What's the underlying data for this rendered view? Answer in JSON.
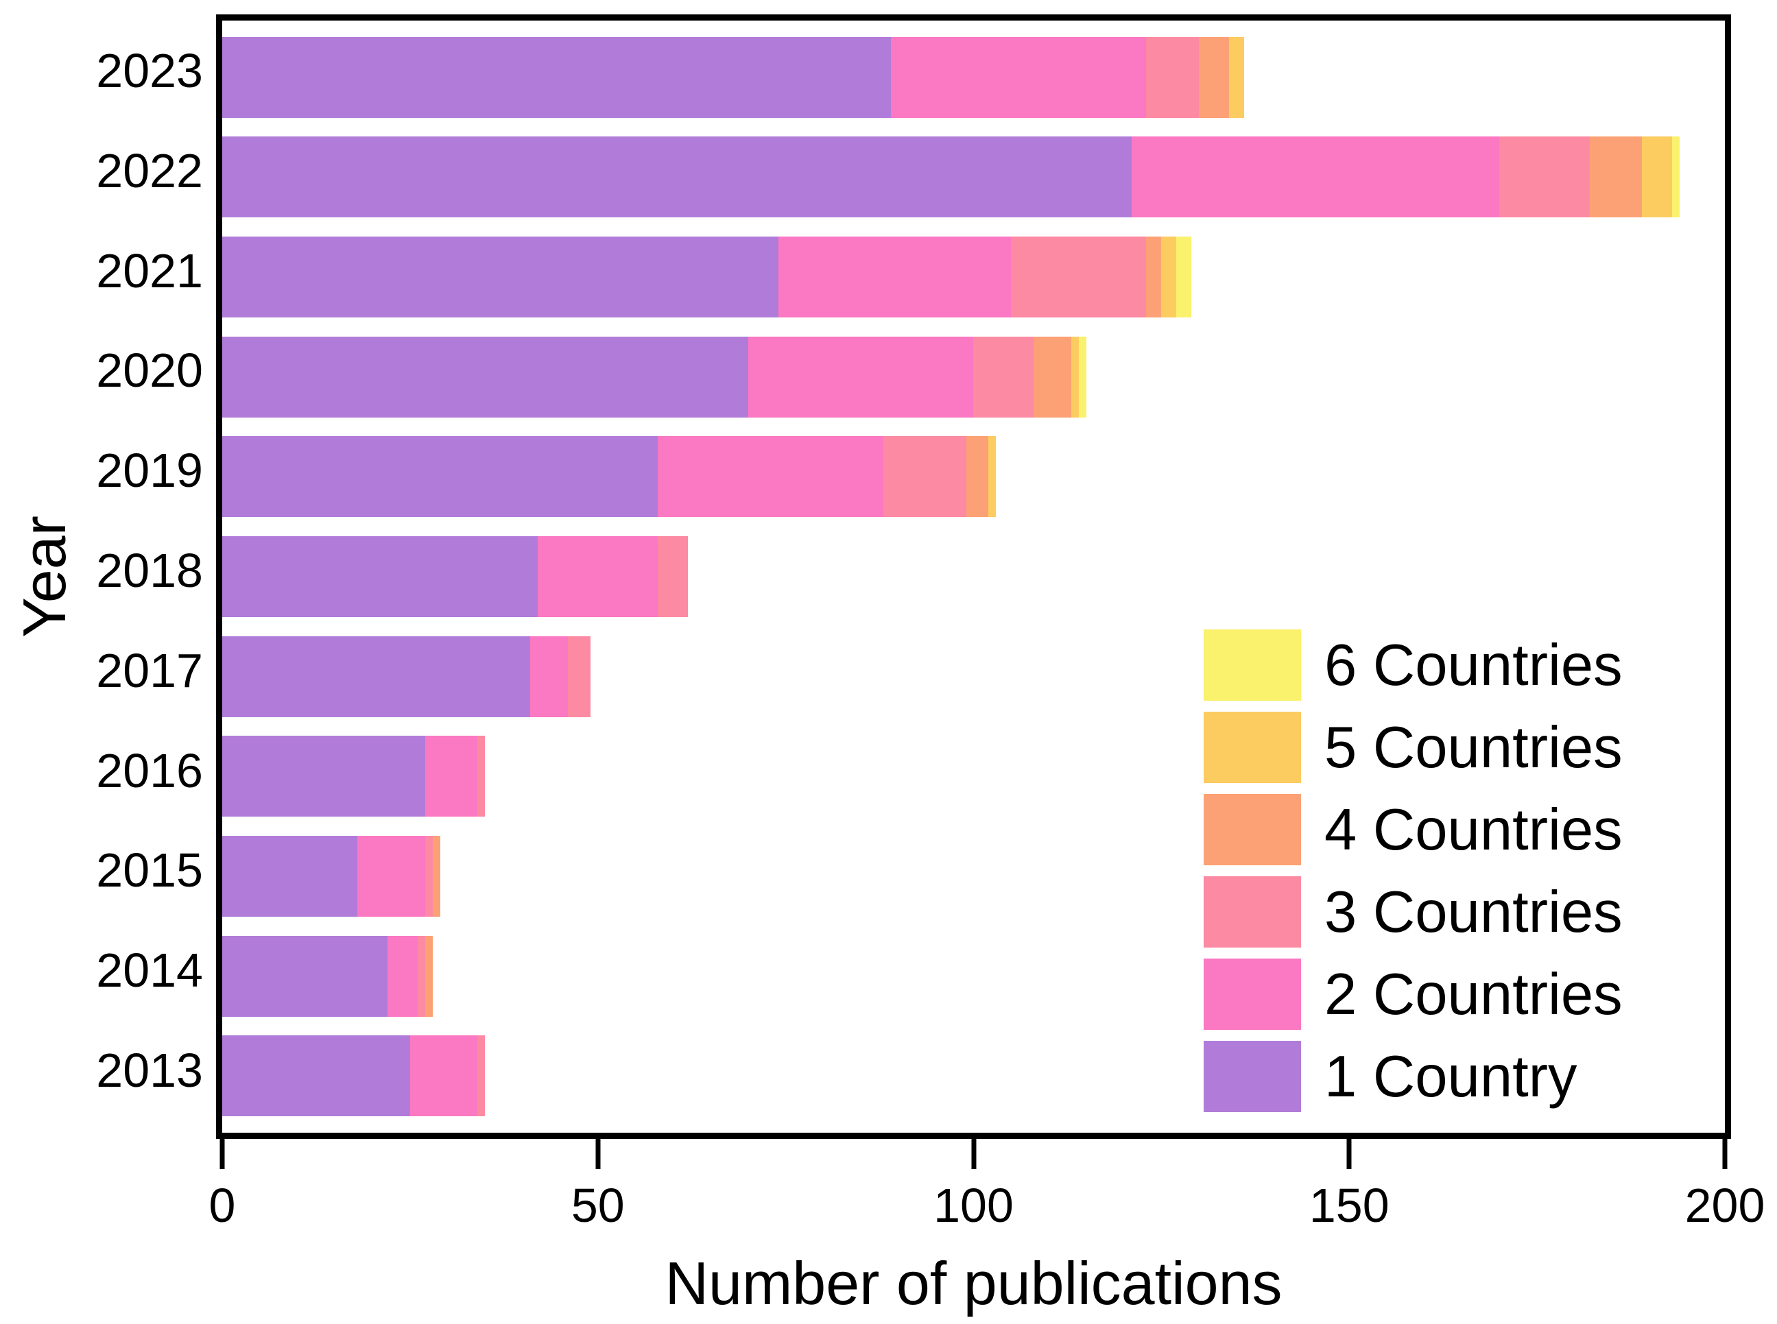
{
  "chart_data": {
    "type": "bar",
    "orientation": "horizontal",
    "stacked": true,
    "title": "",
    "xlabel": "Number of publications",
    "ylabel": "Year",
    "xlim": [
      0,
      200
    ],
    "x_ticks": [
      0,
      50,
      100,
      150,
      200
    ],
    "grid": false,
    "legend_position": "lower right",
    "categories": [
      "2023",
      "2022",
      "2021",
      "2020",
      "2019",
      "2018",
      "2017",
      "2016",
      "2015",
      "2014",
      "2013"
    ],
    "series": [
      {
        "name": "1 Country",
        "color": "#b17cd9",
        "values": [
          89,
          121,
          74,
          70,
          58,
          42,
          41,
          27,
          18,
          22,
          25
        ]
      },
      {
        "name": "2 Countries",
        "color": "#fb78c2",
        "values": [
          34,
          49,
          31,
          30,
          30,
          16,
          5,
          7,
          9,
          4,
          9
        ]
      },
      {
        "name": "3 Countries",
        "color": "#fc8aa2",
        "values": [
          7,
          12,
          18,
          8,
          11,
          4,
          3,
          1,
          1,
          1,
          1
        ]
      },
      {
        "name": "4 Countries",
        "color": "#fca175",
        "values": [
          4,
          7,
          2,
          5,
          3,
          0,
          0,
          0,
          1,
          1,
          0
        ]
      },
      {
        "name": "5 Countries",
        "color": "#fccc60",
        "values": [
          2,
          4,
          2,
          1,
          1,
          0,
          0,
          0,
          0,
          0,
          0
        ]
      },
      {
        "name": "6 Countries",
        "color": "#faf16d",
        "values": [
          0,
          1,
          2,
          1,
          0,
          0,
          0,
          0,
          0,
          0,
          0
        ]
      }
    ],
    "totals": [
      136,
      194,
      129,
      115,
      103,
      62,
      49,
      35,
      29,
      28,
      35
    ]
  }
}
